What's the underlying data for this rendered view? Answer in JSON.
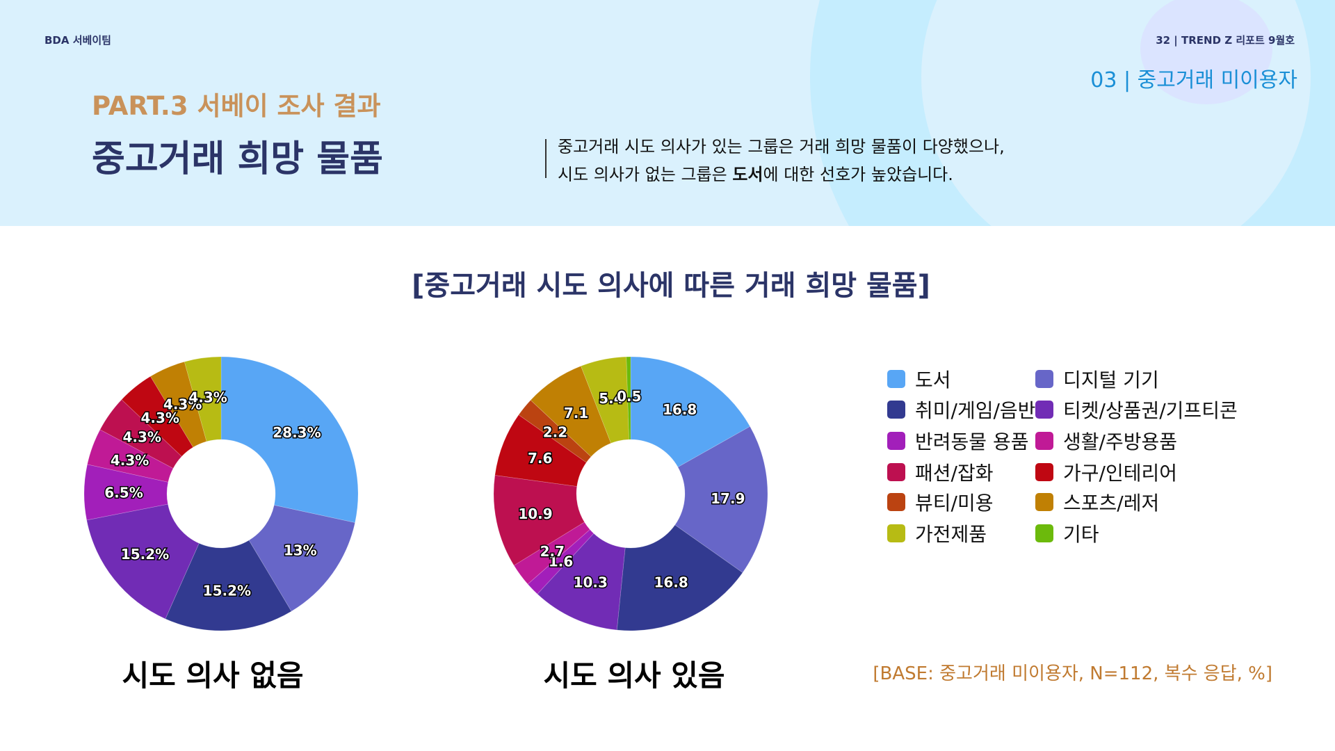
{
  "header": {
    "team": "BDA 서베이팀",
    "issue": "32 | TREND Z 리포트 9월호",
    "section": "03 | 중고거래 미이용자",
    "part": "PART.3 서베이 조사 결과",
    "title": "중고거래 희망 물품",
    "quote_line1": "중고거래 시도 의사가 있는 그룹은 거래 희망 물품이 다양했으나,",
    "quote_line2_a": "시도 의사가 없는 그룹은 ",
    "quote_line2_b": "도서",
    "quote_line2_c": "에 대한 선호가 높았습니다."
  },
  "footer": {
    "base_note": "[BASE: 중고거래 미이용자, N=112, 복수 응답, %]"
  },
  "chart_data": {
    "type": "pie",
    "variant": "donut",
    "title": "[중고거래 시도 의사에 따른 거래 희망 물품]",
    "categories": [
      "도서",
      "디지털 기기",
      "취미/게임/음반",
      "티켓/상품권/기프티콘",
      "반려동물 용품",
      "생활/주방용품",
      "패션/잡화",
      "가구/인테리어",
      "뷰티/미용",
      "스포츠/레저",
      "가전제품",
      "기타"
    ],
    "colors": [
      "#58a6f5",
      "#6766c8",
      "#323a90",
      "#712cb5",
      "#a21fba",
      "#c01a96",
      "#bd1050",
      "#bf0712",
      "#bb4311",
      "#c08004",
      "#b7bb14",
      "#6cba0c"
    ],
    "legend_position": "right",
    "series": [
      {
        "name": "시도 의사 없음",
        "label_suffix": "%",
        "values": [
          28.3,
          13,
          15.2,
          15.2,
          6.5,
          4.3,
          4.3,
          4.3,
          0,
          4.3,
          4.3,
          0
        ]
      },
      {
        "name": "시도 의사 있음",
        "label_suffix": "",
        "values": [
          16.8,
          17.9,
          16.8,
          10.3,
          1.6,
          2.7,
          10.9,
          7.6,
          2.2,
          7.1,
          5.4,
          0.5
        ]
      }
    ]
  }
}
